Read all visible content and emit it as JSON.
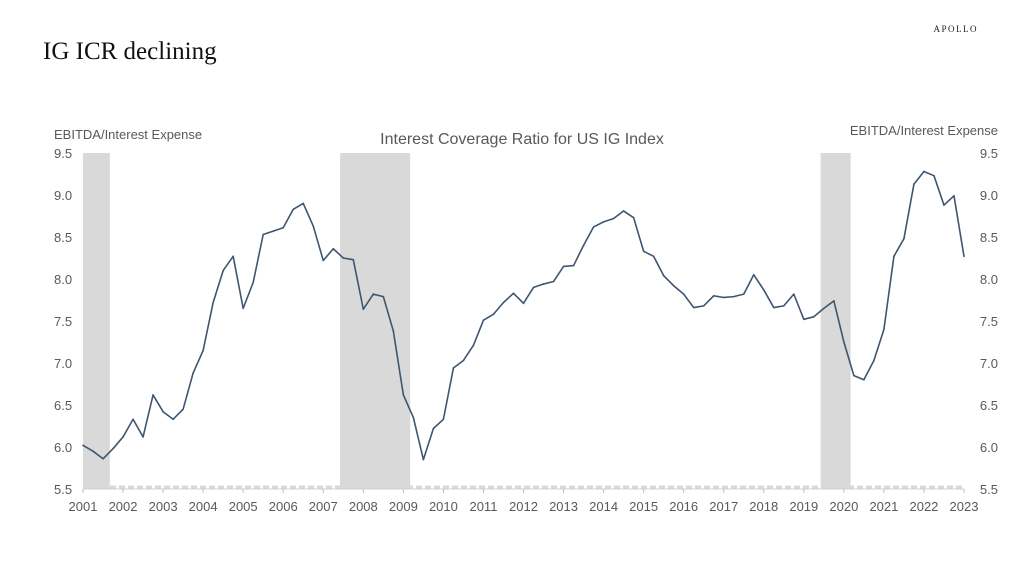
{
  "header": {
    "title": "IG ICR declining",
    "brand": "APOLLO"
  },
  "chart_data": {
    "type": "line",
    "title": "Interest Coverage Ratio for US IG Index",
    "ylabel_left": "EBITDA/Interest Expense",
    "ylabel_right": "EBITDA/Interest Expense",
    "xlim": [
      2001,
      2023
    ],
    "ylim": [
      5.5,
      9.5
    ],
    "x_ticks": [
      "2001",
      "2002",
      "2003",
      "2004",
      "2005",
      "2006",
      "2007",
      "2008",
      "2009",
      "2010",
      "2011",
      "2012",
      "2013",
      "2014",
      "2015",
      "2016",
      "2017",
      "2018",
      "2019",
      "2020",
      "2021",
      "2022",
      "2023"
    ],
    "y_ticks": [
      "5.5",
      "6.0",
      "6.5",
      "7.0",
      "7.5",
      "8.0",
      "8.5",
      "9.0",
      "9.5"
    ],
    "grid": false,
    "frequency": "quarterly",
    "x_start": 2001,
    "values": [
      6.02,
      5.95,
      5.86,
      5.98,
      6.12,
      6.33,
      6.12,
      6.62,
      6.42,
      6.33,
      6.45,
      6.88,
      7.15,
      7.72,
      8.1,
      8.27,
      7.65,
      7.96,
      8.53,
      8.57,
      8.61,
      8.83,
      8.9,
      8.63,
      8.22,
      8.36,
      8.25,
      8.23,
      7.64,
      7.82,
      7.79,
      7.38,
      6.62,
      6.35,
      5.85,
      6.22,
      6.33,
      6.94,
      7.03,
      7.21,
      7.51,
      7.58,
      7.72,
      7.83,
      7.71,
      7.9,
      7.94,
      7.97,
      8.15,
      8.16,
      8.4,
      8.62,
      8.68,
      8.72,
      8.81,
      8.73,
      8.33,
      8.27,
      8.04,
      7.92,
      7.82,
      7.66,
      7.68,
      7.8,
      7.78,
      7.79,
      7.82,
      8.05,
      7.87,
      7.66,
      7.68,
      7.82,
      7.52,
      7.55,
      7.65,
      7.74,
      7.25,
      6.85,
      6.8,
      7.03,
      7.4,
      8.27,
      8.48,
      9.13,
      9.28,
      9.23,
      8.88,
      8.99,
      8.27
    ],
    "recessions": [
      [
        2001.0,
        2001.67
      ],
      [
        2007.42,
        2009.17
      ],
      [
        2019.42,
        2020.17
      ]
    ],
    "colors": {
      "line": "#3e5670",
      "recession": "#d9d9d9",
      "text": "#595959"
    }
  }
}
